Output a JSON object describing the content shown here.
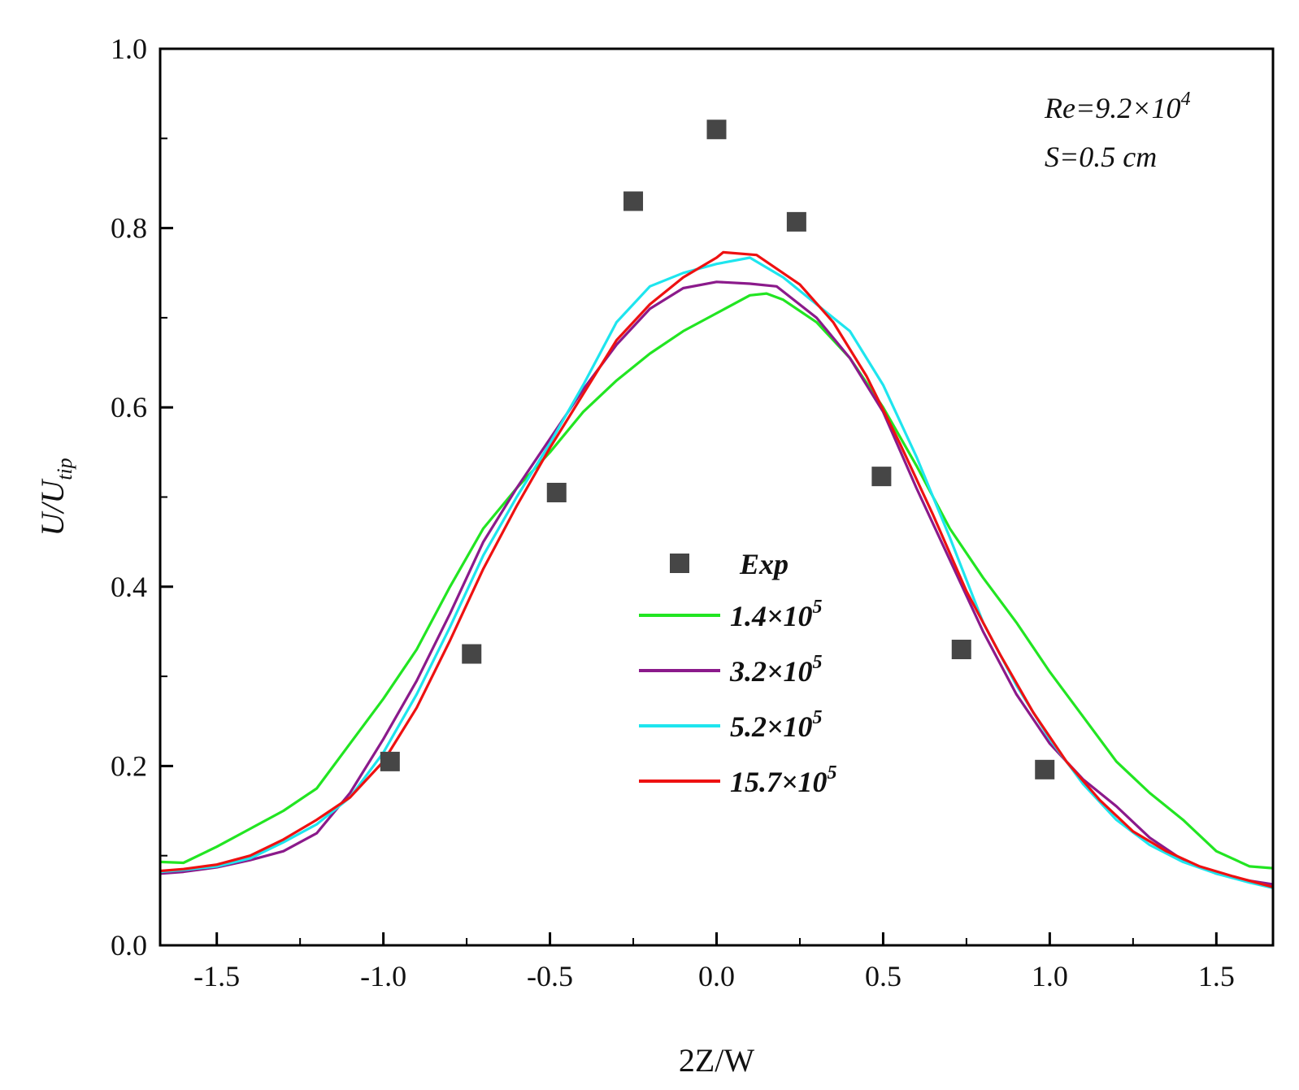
{
  "chart_data": {
    "type": "line",
    "xlabel": "2Z/W",
    "ylabel": {
      "main": "U/U",
      "sub": "tip"
    },
    "xlim": [
      -1.67,
      1.67
    ],
    "ylim": [
      0.0,
      1.0
    ],
    "x_ticks": [
      "-1.5",
      "-1.0",
      "-0.5",
      "0.0",
      "0.5",
      "1.0",
      "1.5"
    ],
    "x_tick_values": [
      -1.5,
      -1.0,
      -0.5,
      0.0,
      0.5,
      1.0,
      1.5
    ],
    "y_ticks": [
      "0.0",
      "0.2",
      "0.4",
      "0.6",
      "0.8",
      "1.0"
    ],
    "y_tick_values": [
      0.0,
      0.2,
      0.4,
      0.6,
      0.8,
      1.0
    ],
    "annotations": [
      {
        "base": "Re=9.2×10",
        "sup": "4"
      },
      {
        "base": "S=0.5 cm",
        "sup": ""
      }
    ],
    "legend_position": "center-right",
    "experimental": {
      "name": "Exp",
      "color": "#464646",
      "x": [
        -0.98,
        -0.735,
        -0.48,
        -0.25,
        0.0,
        0.24,
        0.495,
        0.735,
        0.985
      ],
      "y": [
        0.205,
        0.325,
        0.505,
        0.83,
        0.91,
        0.807,
        0.523,
        0.33,
        0.196
      ]
    },
    "series": [
      {
        "name": {
          "base": "1.4×10",
          "sup": "5"
        },
        "color": "#22e522",
        "x": [
          -1.67,
          -1.6,
          -1.5,
          -1.4,
          -1.3,
          -1.2,
          -1.1,
          -1.0,
          -0.9,
          -0.8,
          -0.7,
          -0.6,
          -0.5,
          -0.4,
          -0.3,
          -0.2,
          -0.1,
          0.0,
          0.1,
          0.15,
          0.2,
          0.3,
          0.4,
          0.5,
          0.6,
          0.7,
          0.8,
          0.9,
          1.0,
          1.1,
          1.2,
          1.3,
          1.4,
          1.5,
          1.6,
          1.67
        ],
        "y": [
          0.093,
          0.092,
          0.11,
          0.13,
          0.15,
          0.175,
          0.225,
          0.275,
          0.33,
          0.4,
          0.465,
          0.51,
          0.55,
          0.595,
          0.63,
          0.66,
          0.685,
          0.705,
          0.725,
          0.727,
          0.72,
          0.695,
          0.655,
          0.6,
          0.535,
          0.465,
          0.41,
          0.36,
          0.305,
          0.255,
          0.205,
          0.17,
          0.14,
          0.105,
          0.088,
          0.086
        ]
      },
      {
        "name": {
          "base": "3.2×10",
          "sup": "5"
        },
        "color": "#8b1a8b",
        "x": [
          -1.67,
          -1.6,
          -1.5,
          -1.4,
          -1.3,
          -1.2,
          -1.1,
          -1.0,
          -0.9,
          -0.8,
          -0.7,
          -0.6,
          -0.5,
          -0.4,
          -0.3,
          -0.2,
          -0.1,
          0.0,
          0.1,
          0.18,
          0.3,
          0.4,
          0.5,
          0.6,
          0.7,
          0.8,
          0.9,
          1.0,
          1.1,
          1.2,
          1.3,
          1.4,
          1.5,
          1.6,
          1.67
        ],
        "y": [
          0.08,
          0.082,
          0.087,
          0.095,
          0.105,
          0.125,
          0.17,
          0.23,
          0.295,
          0.37,
          0.45,
          0.51,
          0.565,
          0.62,
          0.67,
          0.71,
          0.733,
          0.74,
          0.738,
          0.735,
          0.7,
          0.655,
          0.595,
          0.51,
          0.43,
          0.35,
          0.28,
          0.225,
          0.185,
          0.155,
          0.12,
          0.095,
          0.08,
          0.072,
          0.068
        ]
      },
      {
        "name": {
          "base": "5.2×10",
          "sup": "5"
        },
        "color": "#1ee5ee",
        "x": [
          -1.67,
          -1.6,
          -1.5,
          -1.4,
          -1.3,
          -1.2,
          -1.1,
          -1.0,
          -0.9,
          -0.8,
          -0.7,
          -0.6,
          -0.5,
          -0.4,
          -0.3,
          -0.2,
          -0.1,
          0.0,
          0.1,
          0.2,
          0.3,
          0.4,
          0.5,
          0.6,
          0.7,
          0.8,
          0.9,
          1.0,
          1.1,
          1.2,
          1.3,
          1.4,
          1.5,
          1.6,
          1.67
        ],
        "y": [
          0.082,
          0.084,
          0.088,
          0.097,
          0.115,
          0.135,
          0.165,
          0.215,
          0.28,
          0.355,
          0.435,
          0.5,
          0.56,
          0.625,
          0.695,
          0.735,
          0.75,
          0.76,
          0.767,
          0.745,
          0.715,
          0.685,
          0.625,
          0.545,
          0.455,
          0.36,
          0.29,
          0.23,
          0.18,
          0.14,
          0.112,
          0.093,
          0.08,
          0.07,
          0.064
        ]
      },
      {
        "name": {
          "base": "15.7×10",
          "sup": "5"
        },
        "color": "#ee1111",
        "x": [
          -1.67,
          -1.6,
          -1.5,
          -1.4,
          -1.3,
          -1.2,
          -1.1,
          -1.0,
          -0.9,
          -0.8,
          -0.7,
          -0.6,
          -0.5,
          -0.4,
          -0.3,
          -0.2,
          -0.1,
          0.0,
          0.02,
          0.12,
          0.25,
          0.35,
          0.45,
          0.55,
          0.65,
          0.75,
          0.85,
          0.95,
          1.05,
          1.15,
          1.25,
          1.35,
          1.45,
          1.55,
          1.67
        ],
        "y": [
          0.083,
          0.085,
          0.09,
          0.1,
          0.118,
          0.14,
          0.165,
          0.205,
          0.265,
          0.34,
          0.42,
          0.49,
          0.555,
          0.615,
          0.675,
          0.715,
          0.745,
          0.767,
          0.773,
          0.77,
          0.737,
          0.695,
          0.635,
          0.56,
          0.48,
          0.395,
          0.325,
          0.26,
          0.205,
          0.162,
          0.127,
          0.105,
          0.088,
          0.077,
          0.065
        ]
      }
    ]
  }
}
